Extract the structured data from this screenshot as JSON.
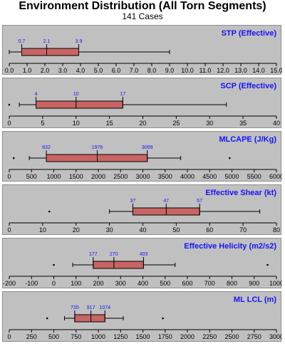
{
  "header": {
    "title": "Environment Distribution (All Torn Segments)",
    "subtitle": "141 Cases"
  },
  "colors": {
    "panel_bg": "#c0c0c0",
    "box_fill": "#c86464",
    "title_blue": "#1414ff",
    "axis": "#000000"
  },
  "chart_data": [
    {
      "type": "boxplot",
      "title": "STP (Effective)",
      "xlim": [
        0,
        15
      ],
      "ticks": [
        0,
        1,
        2,
        3,
        4,
        5,
        6,
        7,
        8,
        9,
        10,
        11,
        12,
        13,
        14,
        15
      ],
      "tick_labels": [
        "0.0",
        "1.0",
        "2.0",
        "3.0",
        "4.0",
        "5.0",
        "6.0",
        "7.0",
        "8.0",
        "9.0",
        "10.0",
        "11.0",
        "12.0",
        "13.0",
        "14.0",
        "15.0"
      ],
      "whisker_low": 0.0,
      "q1": 0.7,
      "median": 2.1,
      "q3": 3.9,
      "whisker_high": 9.0,
      "outliers": [],
      "value_labels": [
        "0.7",
        "2.1",
        "3.9"
      ],
      "grid": false
    },
    {
      "type": "boxplot",
      "title": "SCP (Effective)",
      "xlim": [
        0,
        40
      ],
      "ticks": [
        0,
        5,
        10,
        15,
        20,
        25,
        30,
        35,
        40
      ],
      "tick_labels": [
        "0",
        "5",
        "10",
        "15",
        "20",
        "25",
        "30",
        "35",
        "40"
      ],
      "whisker_low": 1.5,
      "q1": 4,
      "median": 10,
      "q3": 17,
      "whisker_high": 32.5,
      "outliers": [
        0
      ],
      "value_labels": [
        "4",
        "10",
        "17"
      ],
      "grid": false
    },
    {
      "type": "boxplot",
      "title": "MLCAPE (J/Kg)",
      "xlim": [
        0,
        6000
      ],
      "ticks": [
        0,
        500,
        1000,
        1500,
        2000,
        2500,
        3000,
        3500,
        4000,
        4500,
        5000,
        5500,
        6000
      ],
      "tick_labels": [
        "0",
        "500",
        "1000",
        "1500",
        "2000",
        "2500",
        "3000",
        "3500",
        "4000",
        "4500",
        "5000",
        "5500",
        "6000"
      ],
      "whisker_low": 450,
      "q1": 832,
      "median": 1976,
      "q3": 3099,
      "whisker_high": 3850,
      "outliers": [
        100,
        4950
      ],
      "value_labels": [
        "832",
        "1976",
        "3099"
      ],
      "grid": false
    },
    {
      "type": "boxplot",
      "title": "Effective Shear (kt)",
      "xlim": [
        0,
        80
      ],
      "ticks": [
        0,
        10,
        20,
        30,
        40,
        50,
        60,
        70,
        80
      ],
      "tick_labels": [
        "0",
        "10",
        "20",
        "30",
        "40",
        "50",
        "60",
        "70",
        "80"
      ],
      "whisker_low": 30,
      "q1": 37,
      "median": 47,
      "q3": 57,
      "whisker_high": 75,
      "outliers": [
        12
      ],
      "value_labels": [
        "37",
        "47",
        "57"
      ],
      "grid": false
    },
    {
      "type": "boxplot",
      "title": "Effective Helicity (m2/s2)",
      "xlim": [
        -200,
        1000
      ],
      "ticks": [
        -200,
        -100,
        0,
        100,
        200,
        300,
        400,
        500,
        600,
        700,
        800,
        900,
        1000
      ],
      "tick_labels": [
        "-200",
        "-100",
        "0",
        "100",
        "200",
        "300",
        "400",
        "500",
        "600",
        "700",
        "800",
        "900",
        "1000"
      ],
      "whisker_low": 85,
      "q1": 177,
      "median": 270,
      "q3": 403,
      "whisker_high": 545,
      "outliers": [
        0,
        960
      ],
      "value_labels": [
        "177",
        "270",
        "403"
      ],
      "grid": false
    },
    {
      "type": "boxplot",
      "title": "ML LCL (m)",
      "xlim": [
        0,
        3000
      ],
      "ticks": [
        0,
        250,
        500,
        750,
        1000,
        1250,
        1500,
        1750,
        2000,
        2250,
        2500,
        2750,
        3000
      ],
      "tick_labels": [
        "0",
        "250",
        "500",
        "750",
        "1000",
        "1250",
        "1500",
        "1750",
        "2000",
        "2250",
        "2500",
        "2750",
        "3000"
      ],
      "whisker_low": 620,
      "q1": 735,
      "median": 917,
      "q3": 1074,
      "whisker_high": 1280,
      "outliers": [
        425,
        1725
      ],
      "value_labels": [
        "735",
        "917",
        "1074"
      ],
      "grid": false
    }
  ]
}
